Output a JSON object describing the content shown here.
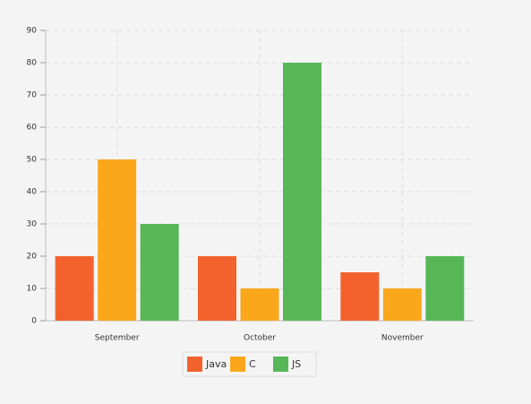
{
  "chart_data": {
    "type": "bar",
    "categories": [
      "September",
      "October",
      "November"
    ],
    "series": [
      {
        "name": "Java",
        "color": "#f3622d",
        "values": [
          20,
          20,
          15
        ]
      },
      {
        "name": "C",
        "color": "#fba71b",
        "values": [
          50,
          10,
          10
        ]
      },
      {
        "name": "JS",
        "color": "#57b757",
        "values": [
          30,
          80,
          20
        ]
      }
    ],
    "ylim": [
      0,
      90
    ],
    "yticks": [
      0,
      10,
      20,
      30,
      40,
      50,
      60,
      70,
      80,
      90
    ],
    "grid": true,
    "legend": "bottom"
  }
}
